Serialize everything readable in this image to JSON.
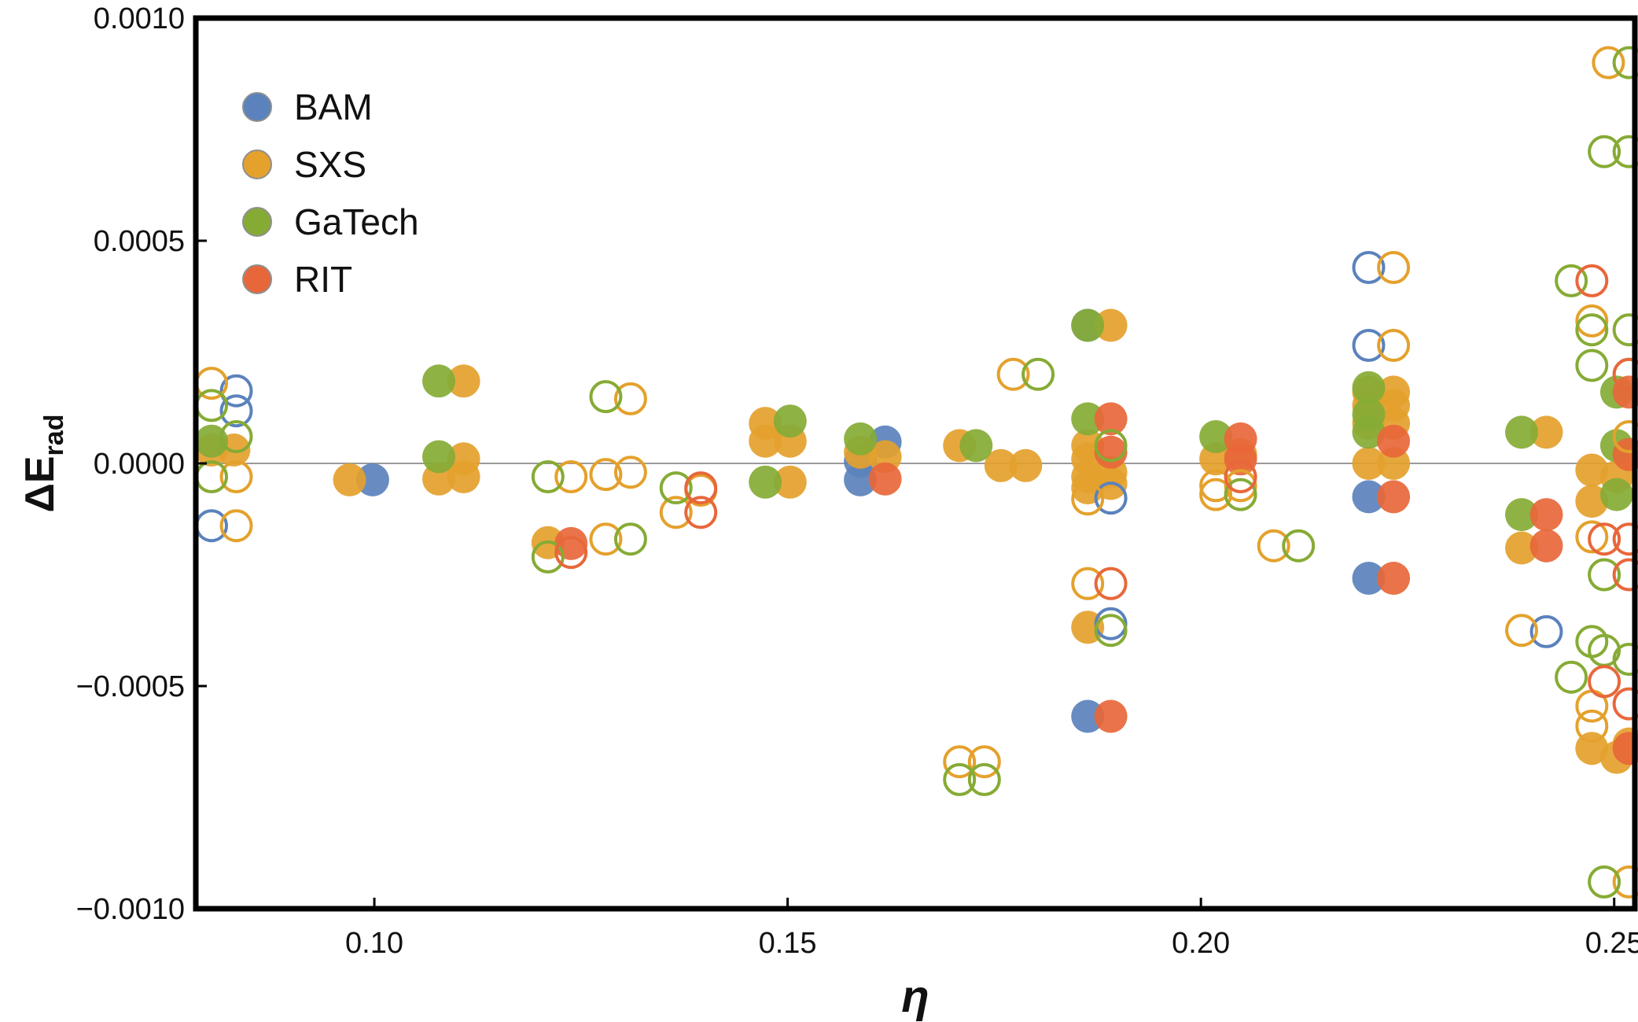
{
  "chart_data": {
    "type": "scatter",
    "title": "",
    "xlabel": "η",
    "ylabel_main": "ΔE",
    "ylabel_sub": "rad",
    "xlim": [
      0.0784,
      0.2525
    ],
    "ylim": [
      -0.001,
      0.001
    ],
    "xticks": [
      0.1,
      0.15,
      0.2,
      0.25
    ],
    "xtick_labels": [
      "0.10",
      "0.15",
      "0.20",
      "0.25"
    ],
    "yticks": [
      0.001,
      0.0005,
      0.0,
      -0.0005,
      -0.001
    ],
    "ytick_labels": [
      "0.0010",
      "0.0005",
      "0.0000",
      "−0.0005",
      "−0.0010"
    ],
    "reference_line": 0.0,
    "legend_position": "top-left",
    "legend": [
      {
        "key": "BAM",
        "label": "BAM"
      },
      {
        "key": "SXS",
        "label": "SXS"
      },
      {
        "key": "GaTech",
        "label": "GaTech"
      },
      {
        "key": "RIT",
        "label": "RIT"
      }
    ],
    "colors": {
      "BAM": "#5b82bc",
      "SXS": "#e4a12c",
      "GaTech": "#86ab35",
      "RIT": "#e8673a"
    },
    "marker_styles": {
      "filled": "filled circle",
      "open": "open circle"
    },
    "series": [
      {
        "name": "BAM",
        "points": [
          [
            0.0998,
            -3.7e-05,
            "filled"
          ],
          [
            0.1588,
            -3.7e-05,
            "filled"
          ],
          [
            0.1618,
            4.8e-05,
            "filled"
          ],
          [
            0.1588,
            5e-06,
            "filled"
          ],
          [
            0.1863,
            0.00031,
            "filled"
          ],
          [
            0.1863,
            -0.000568,
            "filled"
          ],
          [
            0.2203,
            -7.5e-05,
            "filled"
          ],
          [
            0.2203,
            -0.000258,
            "filled"
          ],
          [
            0.0803,
            -0.00014,
            "open"
          ],
          [
            0.0833,
            0.000163,
            "open"
          ],
          [
            0.0833,
            0.000118,
            "open"
          ],
          [
            0.1891,
            -0.00036,
            "open"
          ],
          [
            0.1891,
            -7.8e-05,
            "open"
          ],
          [
            0.2203,
            0.00044,
            "open"
          ],
          [
            0.2203,
            0.000265,
            "open"
          ],
          [
            0.2418,
            -0.000378,
            "open"
          ]
        ]
      },
      {
        "name": "SXS",
        "points": [
          [
            0.0803,
            3e-05,
            "filled"
          ],
          [
            0.083,
            3e-05,
            "filled"
          ],
          [
            0.097,
            -3.7e-05,
            "filled"
          ],
          [
            0.1078,
            -3.5e-05,
            "filled"
          ],
          [
            0.1108,
            1e-05,
            "filled"
          ],
          [
            0.1108,
            -3e-05,
            "filled"
          ],
          [
            0.1108,
            0.000185,
            "filled"
          ],
          [
            0.121,
            -0.000178,
            "filled"
          ],
          [
            0.1473,
            9e-05,
            "filled"
          ],
          [
            0.1473,
            5e-05,
            "filled"
          ],
          [
            0.1503,
            5e-05,
            "filled"
          ],
          [
            0.1503,
            -4.2e-05,
            "filled"
          ],
          [
            0.1588,
            2.5e-05,
            "filled"
          ],
          [
            0.1618,
            1.5e-05,
            "filled"
          ],
          [
            0.1708,
            4e-05,
            "filled"
          ],
          [
            0.1758,
            -5e-06,
            "filled"
          ],
          [
            0.1788,
            -5e-06,
            "filled"
          ],
          [
            0.1863,
            4e-05,
            "filled"
          ],
          [
            0.1863,
            1e-05,
            "filled"
          ],
          [
            0.1863,
            -3e-05,
            "filled"
          ],
          [
            0.1863,
            -5.5e-05,
            "filled"
          ],
          [
            0.1863,
            -0.000368,
            "filled"
          ],
          [
            0.1891,
            0.00031,
            "filled"
          ],
          [
            0.1891,
            -2e-05,
            "filled"
          ],
          [
            0.1891,
            -4.5e-05,
            "filled"
          ],
          [
            0.2018,
            1e-05,
            "filled"
          ],
          [
            0.2048,
            2e-05,
            "filled"
          ],
          [
            0.2203,
            0.00016,
            "filled"
          ],
          [
            0.2203,
            0.00013,
            "filled"
          ],
          [
            0.2203,
            9e-05,
            "filled"
          ],
          [
            0.2203,
            0.0,
            "filled"
          ],
          [
            0.2233,
            0.00016,
            "filled"
          ],
          [
            0.2233,
            0.00013,
            "filled"
          ],
          [
            0.2233,
            9e-05,
            "filled"
          ],
          [
            0.2233,
            0.0,
            "filled"
          ],
          [
            0.2388,
            -0.00019,
            "filled"
          ],
          [
            0.2418,
            7e-05,
            "filled"
          ],
          [
            0.2473,
            -1.5e-05,
            "filled"
          ],
          [
            0.2473,
            -8.5e-05,
            "filled"
          ],
          [
            0.2473,
            -0.00064,
            "filled"
          ],
          [
            0.2503,
            -3e-05,
            "filled"
          ],
          [
            0.2503,
            -0.00066,
            "filled"
          ],
          [
            0.2518,
            2e-05,
            "filled"
          ],
          [
            0.2518,
            -0.00063,
            "filled"
          ],
          [
            0.0803,
            0.00018,
            "open"
          ],
          [
            0.0833,
            -3e-05,
            "open"
          ],
          [
            0.0833,
            -0.00014,
            "open"
          ],
          [
            0.1238,
            -3e-05,
            "open"
          ],
          [
            0.128,
            -2.5e-05,
            "open"
          ],
          [
            0.128,
            -0.00017,
            "open"
          ],
          [
            0.131,
            0.000145,
            "open"
          ],
          [
            0.131,
            -2e-05,
            "open"
          ],
          [
            0.1365,
            -0.00011,
            "open"
          ],
          [
            0.1395,
            -6e-05,
            "open"
          ],
          [
            0.1708,
            -0.00067,
            "open"
          ],
          [
            0.1738,
            -0.00067,
            "open"
          ],
          [
            0.1773,
            0.0002,
            "open"
          ],
          [
            0.1863,
            -0.00027,
            "open"
          ],
          [
            0.1863,
            -8e-05,
            "open"
          ],
          [
            0.2018,
            -5e-05,
            "open"
          ],
          [
            0.2018,
            -7e-05,
            "open"
          ],
          [
            0.2048,
            -5e-05,
            "open"
          ],
          [
            0.2088,
            -0.000185,
            "open"
          ],
          [
            0.2233,
            0.00044,
            "open"
          ],
          [
            0.2233,
            0.000265,
            "open"
          ],
          [
            0.2388,
            -0.000375,
            "open"
          ],
          [
            0.2473,
            0.00032,
            "open"
          ],
          [
            0.2473,
            -0.000165,
            "open"
          ],
          [
            0.2473,
            -0.000545,
            "open"
          ],
          [
            0.2473,
            -0.00059,
            "open"
          ],
          [
            0.2493,
            0.0009,
            "open"
          ],
          [
            0.2518,
            -0.00094,
            "open"
          ],
          [
            0.2518,
            6e-05,
            "open"
          ]
        ]
      },
      {
        "name": "GaTech",
        "points": [
          [
            0.0803,
            5e-05,
            "filled"
          ],
          [
            0.1078,
            0.000185,
            "filled"
          ],
          [
            0.1078,
            1.5e-05,
            "filled"
          ],
          [
            0.1473,
            -4.2e-05,
            "filled"
          ],
          [
            0.1503,
            9.5e-05,
            "filled"
          ],
          [
            0.1588,
            5.5e-05,
            "filled"
          ],
          [
            0.1728,
            4e-05,
            "filled"
          ],
          [
            0.1863,
            0.00031,
            "filled"
          ],
          [
            0.1863,
            0.0001,
            "filled"
          ],
          [
            0.2018,
            6e-05,
            "filled"
          ],
          [
            0.2203,
            0.00017,
            "filled"
          ],
          [
            0.2203,
            0.00011,
            "filled"
          ],
          [
            0.2203,
            7e-05,
            "filled"
          ],
          [
            0.2388,
            7e-05,
            "filled"
          ],
          [
            0.2388,
            -0.000115,
            "filled"
          ],
          [
            0.2503,
            0.00016,
            "filled"
          ],
          [
            0.2503,
            4e-05,
            "filled"
          ],
          [
            0.2503,
            -7e-05,
            "filled"
          ],
          [
            0.0803,
            -3e-05,
            "open"
          ],
          [
            0.0803,
            0.00013,
            "open"
          ],
          [
            0.0833,
            6e-05,
            "open"
          ],
          [
            0.121,
            -3e-05,
            "open"
          ],
          [
            0.121,
            -0.00021,
            "open"
          ],
          [
            0.128,
            0.00015,
            "open"
          ],
          [
            0.131,
            -0.00017,
            "open"
          ],
          [
            0.1365,
            -5.5e-05,
            "open"
          ],
          [
            0.1708,
            -0.00071,
            "open"
          ],
          [
            0.1738,
            -0.00071,
            "open"
          ],
          [
            0.1803,
            0.0002,
            "open"
          ],
          [
            0.1891,
            -0.000375,
            "open"
          ],
          [
            0.1891,
            4e-05,
            "open"
          ],
          [
            0.2048,
            -7e-05,
            "open"
          ],
          [
            0.2118,
            -0.000185,
            "open"
          ],
          [
            0.2448,
            0.00041,
            "open"
          ],
          [
            0.2448,
            -0.00048,
            "open"
          ],
          [
            0.2473,
            0.0003,
            "open"
          ],
          [
            0.2473,
            0.00022,
            "open"
          ],
          [
            0.2473,
            -0.0004,
            "open"
          ],
          [
            0.2488,
            -0.00025,
            "open"
          ],
          [
            0.2488,
            -0.00042,
            "open"
          ],
          [
            0.2488,
            0.0007,
            "open"
          ],
          [
            0.2488,
            -0.00094,
            "open"
          ],
          [
            0.2518,
            0.0009,
            "open"
          ],
          [
            0.2518,
            0.0007,
            "open"
          ],
          [
            0.2518,
            0.0003,
            "open"
          ],
          [
            0.2518,
            0.0002,
            "open"
          ],
          [
            0.2518,
            -0.00044,
            "open"
          ]
        ]
      },
      {
        "name": "RIT",
        "points": [
          [
            0.1238,
            -0.00018,
            "filled"
          ],
          [
            0.1618,
            -3.5e-05,
            "filled"
          ],
          [
            0.1891,
            0.0001,
            "filled"
          ],
          [
            0.1891,
            2.5e-05,
            "filled"
          ],
          [
            0.1891,
            -0.000568,
            "filled"
          ],
          [
            0.2048,
            5.5e-05,
            "filled"
          ],
          [
            0.2048,
            1e-05,
            "filled"
          ],
          [
            0.2233,
            5e-05,
            "filled"
          ],
          [
            0.2233,
            -7.5e-05,
            "filled"
          ],
          [
            0.2233,
            -0.000258,
            "filled"
          ],
          [
            0.2418,
            -0.000115,
            "filled"
          ],
          [
            0.2418,
            -0.000185,
            "filled"
          ],
          [
            0.2518,
            0.00016,
            "filled"
          ],
          [
            0.2518,
            2e-05,
            "filled"
          ],
          [
            0.2518,
            -0.00064,
            "filled"
          ],
          [
            0.1238,
            -0.0002,
            "open"
          ],
          [
            0.1395,
            -0.00011,
            "open"
          ],
          [
            0.1395,
            -5.5e-05,
            "open"
          ],
          [
            0.1891,
            -0.00027,
            "open"
          ],
          [
            0.2048,
            -3e-05,
            "open"
          ],
          [
            0.2473,
            0.00041,
            "open"
          ],
          [
            0.2488,
            -0.00017,
            "open"
          ],
          [
            0.2488,
            -0.00049,
            "open"
          ],
          [
            0.2518,
            0.0002,
            "open"
          ],
          [
            0.2518,
            -0.00017,
            "open"
          ],
          [
            0.2518,
            -0.00025,
            "open"
          ],
          [
            0.2518,
            -0.00054,
            "open"
          ]
        ]
      }
    ]
  }
}
